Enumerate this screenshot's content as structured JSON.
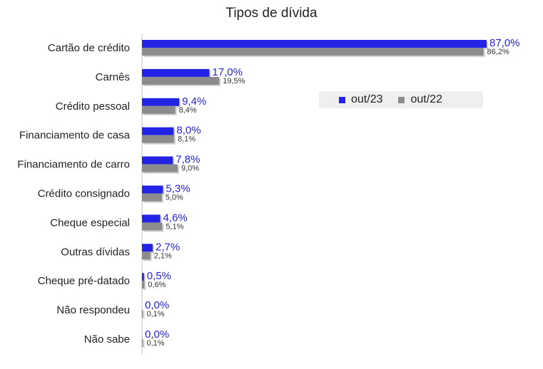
{
  "chart_data": {
    "type": "bar",
    "orientation": "horizontal",
    "title": "Tipos de dívida",
    "categories": [
      "Cartão de crédito",
      "Carnês",
      "Crédito pessoal",
      "Financiamento de casa",
      "Financiamento de carro",
      "Crédito consignado",
      "Cheque especial",
      "Outras dívidas",
      "Cheque pré-datado",
      "Não respondeu",
      "Não sabe"
    ],
    "series": [
      {
        "name": "out/23",
        "color": "#2323e6",
        "values": [
          87.0,
          17.0,
          9.4,
          8.0,
          7.8,
          5.3,
          4.6,
          2.7,
          0.5,
          0.0,
          0.0
        ],
        "labels": [
          "87,0%",
          "17,0%",
          "9,4%",
          "8,0%",
          "7,8%",
          "5,3%",
          "4,6%",
          "2,7%",
          "0,5%",
          "0,0%",
          "0,0%"
        ]
      },
      {
        "name": "out/22",
        "color": "#8c8c8c",
        "values": [
          86.2,
          19.5,
          8.4,
          8.1,
          9.0,
          5.0,
          5.1,
          2.1,
          0.6,
          0.1,
          0.1
        ],
        "labels": [
          "86,2%",
          "19,5%",
          "8,4%",
          "8,1%",
          "9,0%",
          "5,0%",
          "5,1%",
          "2,1%",
          "0,6%",
          "0,1%",
          "0,1%"
        ]
      }
    ],
    "xlim": [
      0,
      87
    ],
    "grid": false,
    "legend_position": "top-right"
  }
}
